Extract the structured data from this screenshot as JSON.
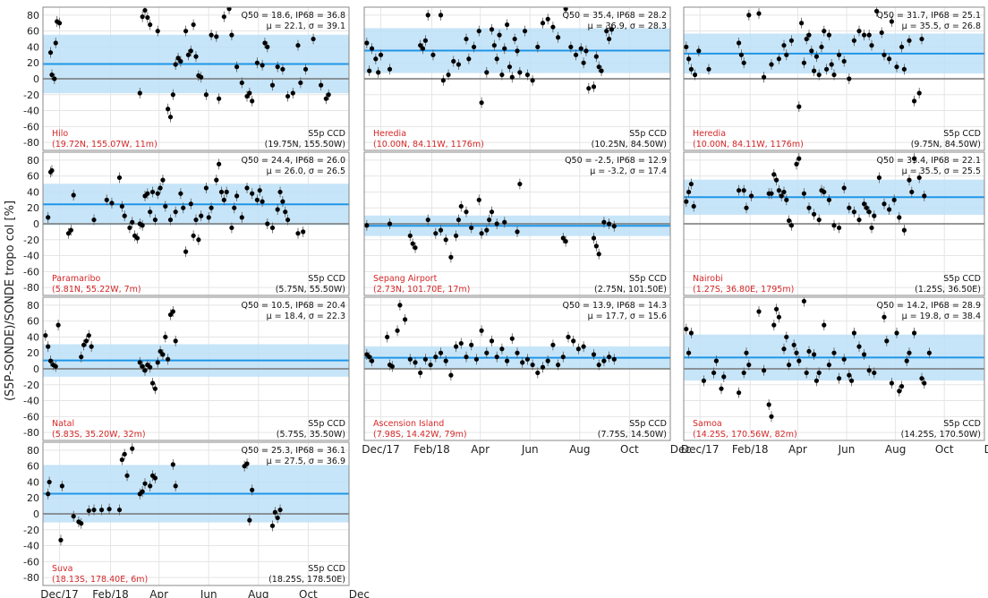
{
  "figure": {
    "ylabel": "(S5P-SONDE)/SONDE tropo col [%]",
    "x_ticks": [
      "Dec/17",
      "Feb/18",
      "Apr",
      "Jun",
      "Aug",
      "Oct",
      "Dec"
    ],
    "y_ticks": [
      "80",
      "60",
      "40",
      "20",
      "0",
      "-20",
      "-40",
      "-60",
      "-80"
    ]
  },
  "colors": {
    "band": "#bde0f7",
    "median": "#1f96e8",
    "zero": "#777777",
    "marker": "#000000",
    "station_text": "#d62728"
  },
  "chart_data": [
    {
      "type": "scatter",
      "station": "Hilo",
      "station_info": "(19.72N, 155.07W, 11m)",
      "pixel_label": "S5p CCD",
      "pixel_coords": "(19.75N, 155.50W)",
      "stat_line1": "Q50 = 18.6, IP68 = 36.8",
      "stat_line2": "μ = 22.1, σ = 39.1",
      "q50": 18.6,
      "ip68": 36.8,
      "ylim": [
        -90,
        90
      ],
      "x": [
        0.3,
        0.35,
        0.45,
        0.5,
        0.55,
        0.65,
        3.8,
        3.9,
        4.0,
        4.1,
        4.2,
        4.5,
        4.9,
        5.0,
        5.1,
        5.2,
        5.3,
        5.4,
        5.6,
        5.7,
        5.8,
        5.9,
        6.0,
        6.1,
        6.2,
        6.4,
        6.6,
        6.8,
        6.9,
        7.1,
        7.3,
        7.4,
        7.6,
        7.8,
        8.0,
        8.1,
        8.2,
        8.4,
        8.6,
        8.7,
        8.8,
        9.0,
        9.2,
        9.4,
        9.6,
        9.8,
        10.0,
        10.1,
        10.3,
        10.6,
        10.9,
        11.1,
        11.2
      ],
      "y": [
        33,
        5,
        0,
        45,
        72,
        70,
        -18,
        78,
        86,
        77,
        68,
        60,
        -38,
        -48,
        -20,
        18,
        26,
        22,
        60,
        30,
        35,
        68,
        28,
        4,
        2,
        -20,
        55,
        53,
        -25,
        78,
        88,
        55,
        15,
        -5,
        -22,
        -18,
        -28,
        20,
        17,
        45,
        40,
        -8,
        15,
        12,
        -22,
        -18,
        42,
        -5,
        12,
        50,
        -8,
        -25,
        -20
      ]
    },
    {
      "type": "scatter",
      "station": "Heredia",
      "station_info": "(10.00N, 84.11W, 1176m)",
      "pixel_label": "S5p CCD",
      "pixel_coords": "(10.25N, 84.50W)",
      "stat_line1": "Q50 = 35.4, IP68 = 28.2",
      "stat_line2": "μ = 36.9, σ = 28.3",
      "q50": 35.4,
      "ip68": 28.2,
      "ylim": [
        -90,
        90
      ],
      "x": [
        0.1,
        0.2,
        0.3,
        0.45,
        0.55,
        0.65,
        1.0,
        2.2,
        2.3,
        2.4,
        2.5,
        2.7,
        3.0,
        3.1,
        3.3,
        3.5,
        3.7,
        4.0,
        4.1,
        4.3,
        4.5,
        4.6,
        4.8,
        5.0,
        5.1,
        5.2,
        5.3,
        5.4,
        5.5,
        5.6,
        5.7,
        5.8,
        5.9,
        6.0,
        6.1,
        6.3,
        6.4,
        6.6,
        6.8,
        7.0,
        7.2,
        7.4,
        7.6,
        7.9,
        8.1,
        8.3,
        8.5,
        8.6,
        8.7,
        8.8,
        9.0,
        9.1,
        9.2,
        9.3,
        9.5,
        9.6,
        9.7
      ],
      "y": [
        45,
        10,
        38,
        25,
        8,
        30,
        12,
        42,
        38,
        48,
        80,
        30,
        80,
        -2,
        5,
        22,
        18,
        50,
        25,
        40,
        60,
        -30,
        8,
        62,
        42,
        25,
        55,
        5,
        38,
        68,
        15,
        2,
        50,
        35,
        8,
        60,
        5,
        -2,
        40,
        70,
        75,
        65,
        52,
        88,
        40,
        30,
        38,
        20,
        35,
        -12,
        -10,
        28,
        15,
        10,
        60,
        50,
        62
      ]
    },
    {
      "type": "scatter",
      "station": "Heredia",
      "station_info": "(10.00N, 84.11W, 1176m)",
      "pixel_label": "S5p CCD",
      "pixel_coords": "(9.75N, 84.50W)",
      "stat_line1": "Q50 = 31.7, IP68 = 25.1",
      "stat_line2": "μ = 35.5, σ = 26.8",
      "q50": 31.7,
      "ip68": 25.1,
      "ylim": [
        -90,
        90
      ],
      "x": [
        0.1,
        0.2,
        0.3,
        0.45,
        0.6,
        1.0,
        2.2,
        2.3,
        2.4,
        2.6,
        3.0,
        3.2,
        3.5,
        3.8,
        4.0,
        4.1,
        4.3,
        4.6,
        4.7,
        4.8,
        4.9,
        5.0,
        5.1,
        5.2,
        5.3,
        5.4,
        5.5,
        5.6,
        5.7,
        5.8,
        5.9,
        6.0,
        6.2,
        6.4,
        6.6,
        6.8,
        7.0,
        7.2,
        7.4,
        7.5,
        7.7,
        7.9,
        8.0,
        8.2,
        8.3,
        8.5,
        8.7,
        8.8,
        9.0,
        9.2,
        9.4,
        9.5
      ],
      "y": [
        40,
        25,
        12,
        5,
        35,
        12,
        45,
        30,
        20,
        80,
        82,
        2,
        18,
        25,
        42,
        30,
        48,
        -35,
        70,
        20,
        50,
        55,
        35,
        10,
        28,
        5,
        40,
        60,
        12,
        55,
        18,
        5,
        30,
        22,
        0,
        48,
        60,
        55,
        55,
        42,
        85,
        58,
        30,
        25,
        72,
        15,
        40,
        12,
        48,
        -28,
        -18,
        50
      ]
    },
    {
      "type": "scatter",
      "station": "Paramaribo",
      "station_info": "(5.81N, 55.22W, 7m)",
      "pixel_label": "S5p CCD",
      "pixel_coords": "(5.75N, 55.50W)",
      "stat_line1": "Q50 = 24.4, IP68 = 26.0",
      "stat_line2": "μ = 26.0, σ = 26.5",
      "q50": 24.4,
      "ip68": 26.0,
      "ylim": [
        -90,
        90
      ],
      "x": [
        0.2,
        0.3,
        0.35,
        1.0,
        1.1,
        1.2,
        2.0,
        2.5,
        2.7,
        3.0,
        3.1,
        3.2,
        3.4,
        3.5,
        3.6,
        3.7,
        3.8,
        3.9,
        4.0,
        4.1,
        4.2,
        4.3,
        4.4,
        4.5,
        4.6,
        4.7,
        4.8,
        5.0,
        5.2,
        5.4,
        5.5,
        5.6,
        5.8,
        5.9,
        6.0,
        6.1,
        6.2,
        6.4,
        6.5,
        6.6,
        6.8,
        6.9,
        7.0,
        7.1,
        7.2,
        7.4,
        7.5,
        7.6,
        7.8,
        8.0,
        8.2,
        8.4,
        8.5,
        8.6,
        8.8,
        9.0,
        9.2,
        9.3,
        9.4,
        9.5,
        9.6,
        10.0,
        10.2
      ],
      "y": [
        8,
        65,
        67,
        -12,
        -8,
        36,
        5,
        30,
        26,
        58,
        22,
        10,
        -5,
        2,
        -15,
        -18,
        0,
        -2,
        35,
        38,
        15,
        40,
        5,
        38,
        45,
        55,
        22,
        5,
        15,
        38,
        20,
        -35,
        25,
        -15,
        5,
        -20,
        10,
        45,
        8,
        20,
        55,
        75,
        40,
        30,
        40,
        -5,
        20,
        35,
        8,
        45,
        38,
        30,
        42,
        28,
        0,
        -5,
        18,
        40,
        28,
        15,
        5,
        -12,
        -10
      ]
    },
    {
      "type": "scatter",
      "station": "Sepang Airport",
      "station_info": "(2.73N, 101.70E, 17m)",
      "pixel_label": "S5p CCD",
      "pixel_coords": "(2.75N, 101.50E)",
      "stat_line1": "Q50 = -2.5, IP68 = 12.9",
      "stat_line2": "μ = -3.2, σ = 17.4",
      "q50": -2.5,
      "ip68": 12.9,
      "ylim": [
        -90,
        90
      ],
      "x": [
        0.1,
        1.0,
        1.8,
        1.9,
        2.0,
        2.5,
        2.8,
        3.0,
        3.2,
        3.4,
        3.6,
        3.7,
        3.8,
        4.0,
        4.2,
        4.5,
        4.6,
        4.8,
        4.9,
        5.0,
        5.2,
        5.5,
        6.0,
        6.1,
        7.8,
        7.9,
        9.0,
        9.1,
        9.2,
        9.4,
        9.6,
        9.8
      ],
      "y": [
        -2,
        0,
        -15,
        -25,
        -30,
        5,
        -12,
        -8,
        -20,
        -42,
        -15,
        5,
        22,
        15,
        -5,
        30,
        -12,
        -8,
        5,
        15,
        0,
        2,
        -10,
        50,
        -18,
        -22,
        -18,
        -28,
        -38,
        2,
        0,
        -3
      ]
    },
    {
      "type": "scatter",
      "station": "Nairobi",
      "station_info": "(1.27S, 36.80E, 1795m)",
      "pixel_label": "S5p CCD",
      "pixel_coords": "(1.25S, 36.50E)",
      "stat_line1": "Q50 = 33.4, IP68 = 22.1",
      "stat_line2": "μ = 35.5, σ = 25.5",
      "q50": 33.4,
      "ip68": 22.1,
      "ylim": [
        -90,
        90
      ],
      "x": [
        0.1,
        0.2,
        0.3,
        0.4,
        2.2,
        2.4,
        2.5,
        2.7,
        3.4,
        3.5,
        3.6,
        3.7,
        3.8,
        3.9,
        4.0,
        4.1,
        4.2,
        4.3,
        4.5,
        4.6,
        4.8,
        5.0,
        5.2,
        5.4,
        5.5,
        5.6,
        5.8,
        6.0,
        6.2,
        6.4,
        6.6,
        6.8,
        7.0,
        7.2,
        7.3,
        7.4,
        7.5,
        7.6,
        7.8,
        8.0,
        8.2,
        8.4,
        8.6,
        8.8,
        9.0,
        9.1,
        9.2,
        9.4,
        9.6
      ],
      "y": [
        28,
        40,
        50,
        22,
        42,
        42,
        20,
        35,
        38,
        38,
        62,
        55,
        42,
        35,
        40,
        30,
        4,
        -2,
        75,
        82,
        38,
        20,
        12,
        5,
        42,
        40,
        30,
        -2,
        -5,
        45,
        20,
        15,
        5,
        25,
        20,
        15,
        -5,
        10,
        58,
        25,
        18,
        30,
        8,
        -8,
        55,
        40,
        82,
        58,
        35
      ]
    },
    {
      "type": "scatter",
      "station": "Natal",
      "station_info": "(5.83S, 35.20W, 32m)",
      "pixel_label": "S5p CCD",
      "pixel_coords": "(5.75S, 35.50W)",
      "stat_line1": "Q50 = 10.5, IP68 = 20.4",
      "stat_line2": "μ = 18.4, σ = 22.3",
      "q50": 10.5,
      "ip68": 20.4,
      "ylim": [
        -90,
        90
      ],
      "x": [
        0.1,
        0.2,
        0.3,
        0.4,
        0.5,
        0.6,
        1.5,
        1.6,
        1.7,
        1.8,
        1.9,
        3.8,
        3.9,
        4.0,
        4.1,
        4.2,
        4.3,
        4.4,
        4.5,
        4.6,
        4.7,
        4.8,
        4.9,
        5.0,
        5.1,
        5.2
      ],
      "y": [
        42,
        28,
        10,
        5,
        3,
        55,
        15,
        30,
        35,
        42,
        28,
        8,
        3,
        -2,
        5,
        2,
        -18,
        -25,
        8,
        22,
        18,
        40,
        12,
        68,
        72,
        35
      ]
    },
    {
      "type": "scatter",
      "station": "Ascension Island",
      "station_info": "(7.98S, 14.42W, 79m)",
      "pixel_label": "S5p CCD",
      "pixel_coords": "(7.75S, 14.50W)",
      "stat_line1": "Q50 = 13.9, IP68 = 14.3",
      "stat_line2": "μ = 17.7, σ = 15.6",
      "q50": 13.9,
      "ip68": 14.3,
      "ylim": [
        -90,
        90
      ],
      "x": [
        0.1,
        0.2,
        0.3,
        0.9,
        1.0,
        1.1,
        1.3,
        1.4,
        1.6,
        1.8,
        2.0,
        2.2,
        2.4,
        2.6,
        2.8,
        3.0,
        3.2,
        3.4,
        3.6,
        3.8,
        4.0,
        4.2,
        4.4,
        4.6,
        4.8,
        5.0,
        5.2,
        5.4,
        5.6,
        5.8,
        6.0,
        6.2,
        6.4,
        6.6,
        6.8,
        7.0,
        7.2,
        7.4,
        7.6,
        7.8,
        8.0,
        8.2,
        8.4,
        8.6,
        9.0,
        9.2,
        9.4,
        9.6,
        9.8
      ],
      "y": [
        18,
        15,
        10,
        40,
        5,
        3,
        48,
        80,
        62,
        12,
        8,
        -5,
        12,
        5,
        15,
        20,
        10,
        -8,
        28,
        32,
        15,
        30,
        12,
        48,
        20,
        35,
        15,
        25,
        10,
        38,
        20,
        8,
        12,
        5,
        -5,
        2,
        10,
        30,
        5,
        15,
        40,
        35,
        25,
        28,
        18,
        5,
        10,
        15,
        12
      ]
    },
    {
      "type": "scatter",
      "station": "Samoa",
      "station_info": "(14.25S, 170.56W, 82m)",
      "pixel_label": "S5p CCD",
      "pixel_coords": "(14.25S, 170.50W)",
      "stat_line1": "Q50 = 14.2, IP68 = 28.9",
      "stat_line2": "μ = 19.8, σ = 38.4",
      "q50": 14.2,
      "ip68": 28.9,
      "ylim": [
        -90,
        90
      ],
      "x": [
        0.1,
        0.2,
        0.3,
        0.8,
        1.2,
        1.3,
        1.5,
        1.6,
        2.2,
        2.4,
        2.5,
        2.6,
        3.0,
        3.2,
        3.4,
        3.5,
        3.6,
        3.7,
        3.8,
        4.0,
        4.1,
        4.2,
        4.4,
        4.5,
        4.6,
        4.8,
        4.9,
        5.0,
        5.2,
        5.3,
        5.4,
        5.6,
        5.8,
        6.0,
        6.2,
        6.4,
        6.6,
        6.7,
        6.8,
        7.0,
        7.2,
        7.4,
        7.6,
        8.0,
        8.1,
        8.3,
        8.5,
        8.6,
        8.7,
        8.9,
        9.0,
        9.2,
        9.5,
        9.6,
        9.8
      ],
      "y": [
        50,
        20,
        45,
        -15,
        -5,
        10,
        -25,
        -10,
        -30,
        -5,
        20,
        5,
        72,
        -2,
        -45,
        -60,
        55,
        75,
        65,
        25,
        40,
        5,
        30,
        20,
        10,
        85,
        -5,
        22,
        18,
        -15,
        -5,
        55,
        5,
        20,
        -12,
        12,
        -8,
        -15,
        45,
        28,
        18,
        -2,
        -5,
        65,
        35,
        -18,
        45,
        -28,
        -22,
        10,
        20,
        45,
        -12,
        -18,
        20
      ]
    },
    {
      "type": "scatter",
      "station": "Suva",
      "station_info": "(18.13S, 178.40E, 6m)",
      "pixel_label": "S5p CCD",
      "pixel_coords": "(18.25S, 178.50E)",
      "stat_line1": "Q50 = 25.3, IP68 = 36.1",
      "stat_line2": "μ = 27.5, σ = 36.9",
      "q50": 25.3,
      "ip68": 36.1,
      "ylim": [
        -90,
        90
      ],
      "x": [
        0.2,
        0.25,
        0.7,
        0.75,
        1.2,
        1.4,
        1.5,
        1.8,
        2.0,
        2.3,
        2.6,
        3.0,
        3.1,
        3.2,
        3.3,
        3.5,
        3.8,
        3.9,
        4.0,
        4.2,
        4.3,
        4.4,
        5.1,
        5.2,
        7.9,
        8.0,
        8.1,
        8.2,
        9.0,
        9.1,
        9.2,
        9.3
      ],
      "y": [
        25,
        40,
        -33,
        35,
        -3,
        -10,
        -12,
        4,
        5,
        5,
        6,
        5,
        68,
        75,
        48,
        82,
        25,
        28,
        38,
        35,
        48,
        45,
        62,
        35,
        60,
        63,
        -8,
        30,
        -15,
        2,
        -5,
        5
      ]
    }
  ]
}
